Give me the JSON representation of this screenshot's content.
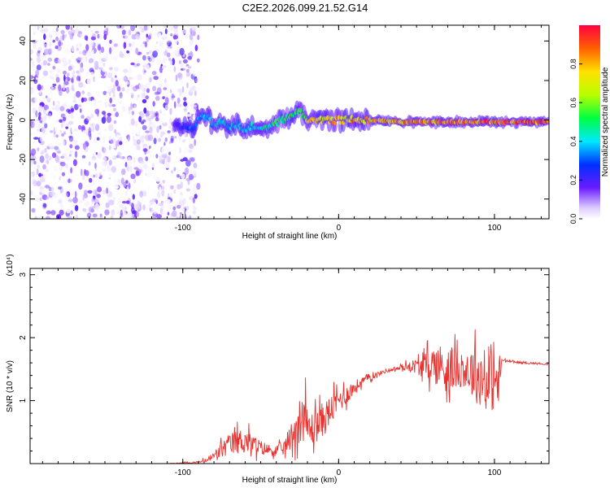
{
  "title": "C2E2.2026.099.21.52.G14",
  "colors": {
    "axis": "#000000",
    "snr_line": "#e8322f",
    "bg": "#ffffff"
  },
  "chart_data": [
    {
      "type": "heatmap",
      "title": "C2E2.2026.099.21.52.G14",
      "xlabel": "Height of straight line (km)",
      "ylabel": "Frequency (Hz)",
      "xlim": [
        -198,
        135
      ],
      "ylim": [
        -50,
        48
      ],
      "xticks": [
        -100,
        0,
        100
      ],
      "yticks": [
        -40,
        -20,
        0,
        20,
        40
      ],
      "colorbar": {
        "label": "Normalized spectral amplitude",
        "range": [
          0,
          1
        ],
        "ticks": [
          "0.0",
          "0.2",
          "0.4",
          "0.6",
          "0.8"
        ]
      },
      "noise_region_x": [
        -198,
        -90
      ],
      "ridge": {
        "x": [
          -105,
          -95,
          -90,
          -85,
          -80,
          -75,
          -70,
          -65,
          -60,
          -55,
          -50,
          -45,
          -40,
          -35,
          -30,
          -25,
          -20,
          -15,
          -10,
          0,
          20,
          40,
          60,
          80,
          100,
          135
        ],
        "freq": [
          -2,
          -5,
          0,
          2,
          -3,
          0,
          -4,
          -2,
          -5,
          -3,
          -4,
          -3,
          -1,
          0,
          3,
          4,
          0,
          -1,
          0,
          0,
          0,
          -1,
          -1,
          -1,
          -1,
          -1
        ],
        "amplitude": [
          0.2,
          0.35,
          0.4,
          0.45,
          0.4,
          0.45,
          0.4,
          0.45,
          0.4,
          0.45,
          0.45,
          0.5,
          0.55,
          0.55,
          0.6,
          0.6,
          0.8,
          0.85,
          0.8,
          0.85,
          0.85,
          0.9,
          0.9,
          0.95,
          1.0,
          1.0
        ]
      }
    },
    {
      "type": "line",
      "xlabel": "Height of straight line (km)",
      "ylabel": "SNR (10 * v/v)",
      "scale_label": "(x10⁴)",
      "xlim": [
        -198,
        135
      ],
      "ylim": [
        0,
        3.1
      ],
      "xticks": [
        -100,
        0,
        100
      ],
      "yticks": [
        1,
        2,
        3
      ],
      "series": [
        {
          "x": [
            -198,
            -110,
            -90,
            -85,
            -80,
            -75,
            -70,
            -65,
            -60,
            -55,
            -50,
            -45,
            -40,
            -35,
            -30,
            -25,
            -22,
            -20,
            -17,
            -15,
            -10,
            -5,
            0,
            5,
            10,
            15,
            20,
            25,
            30,
            35,
            40,
            45,
            50,
            55,
            60,
            65,
            70,
            75,
            80,
            85,
            90,
            95,
            100,
            103,
            105,
            110,
            120,
            135
          ],
          "values": [
            0.0,
            0.0,
            0.02,
            0.05,
            0.12,
            0.22,
            0.3,
            0.35,
            0.38,
            0.3,
            0.25,
            0.22,
            0.2,
            0.25,
            0.45,
            0.7,
            0.8,
            0.55,
            0.55,
            0.6,
            0.7,
            0.85,
            1.0,
            1.1,
            1.2,
            1.3,
            1.38,
            1.42,
            1.47,
            1.5,
            1.52,
            1.55,
            1.55,
            1.55,
            1.58,
            1.55,
            1.5,
            1.5,
            1.5,
            1.45,
            1.4,
            1.3,
            1.3,
            1.3,
            1.65,
            1.62,
            1.6,
            1.58
          ],
          "noise": [
            0.0,
            0.003,
            0.02,
            0.05,
            0.1,
            0.18,
            0.22,
            0.25,
            0.25,
            0.2,
            0.15,
            0.12,
            0.1,
            0.15,
            0.3,
            0.45,
            0.55,
            0.4,
            0.35,
            0.35,
            0.35,
            0.3,
            0.25,
            0.2,
            0.15,
            0.1,
            0.08,
            0.05,
            0.04,
            0.04,
            0.05,
            0.1,
            0.15,
            0.25,
            0.35,
            0.45,
            0.5,
            0.4,
            0.35,
            0.5,
            0.6,
            0.6,
            0.6,
            0.6,
            0.05,
            0.02,
            0.02,
            0.02
          ]
        }
      ]
    }
  ]
}
